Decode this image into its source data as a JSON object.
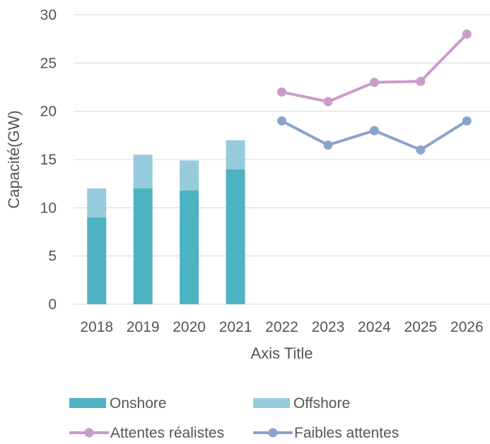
{
  "chart_data": {
    "type": "bar",
    "categories": [
      "2018",
      "2019",
      "2020",
      "2021",
      "2022",
      "2023",
      "2024",
      "2025",
      "2026"
    ],
    "series": [
      {
        "name": "Onshore",
        "type": "bar",
        "stack": "capacity",
        "color": "#4db3c2",
        "values": [
          9,
          12,
          11.8,
          14,
          null,
          null,
          null,
          null,
          null
        ]
      },
      {
        "name": "Offshore",
        "type": "bar",
        "stack": "capacity",
        "color": "#96cbdb",
        "values": [
          3,
          3.5,
          3.1,
          3,
          null,
          null,
          null,
          null,
          null
        ]
      },
      {
        "name": "Attentes réalistes",
        "type": "line",
        "color": "#c99cc9",
        "values": [
          null,
          null,
          null,
          null,
          22,
          21,
          23,
          23.1,
          28
        ]
      },
      {
        "name": "Faibles attentes",
        "type": "line",
        "color": "#8ba3cc",
        "values": [
          null,
          null,
          null,
          null,
          19,
          16.5,
          18,
          16,
          19
        ]
      }
    ],
    "xlabel": "Axis Title",
    "ylabel": "Capacité(GW)",
    "ylim": [
      0,
      30
    ],
    "yticks": [
      0,
      5,
      10,
      15,
      20,
      25,
      30
    ],
    "grid": true,
    "legend_position": "bottom"
  }
}
